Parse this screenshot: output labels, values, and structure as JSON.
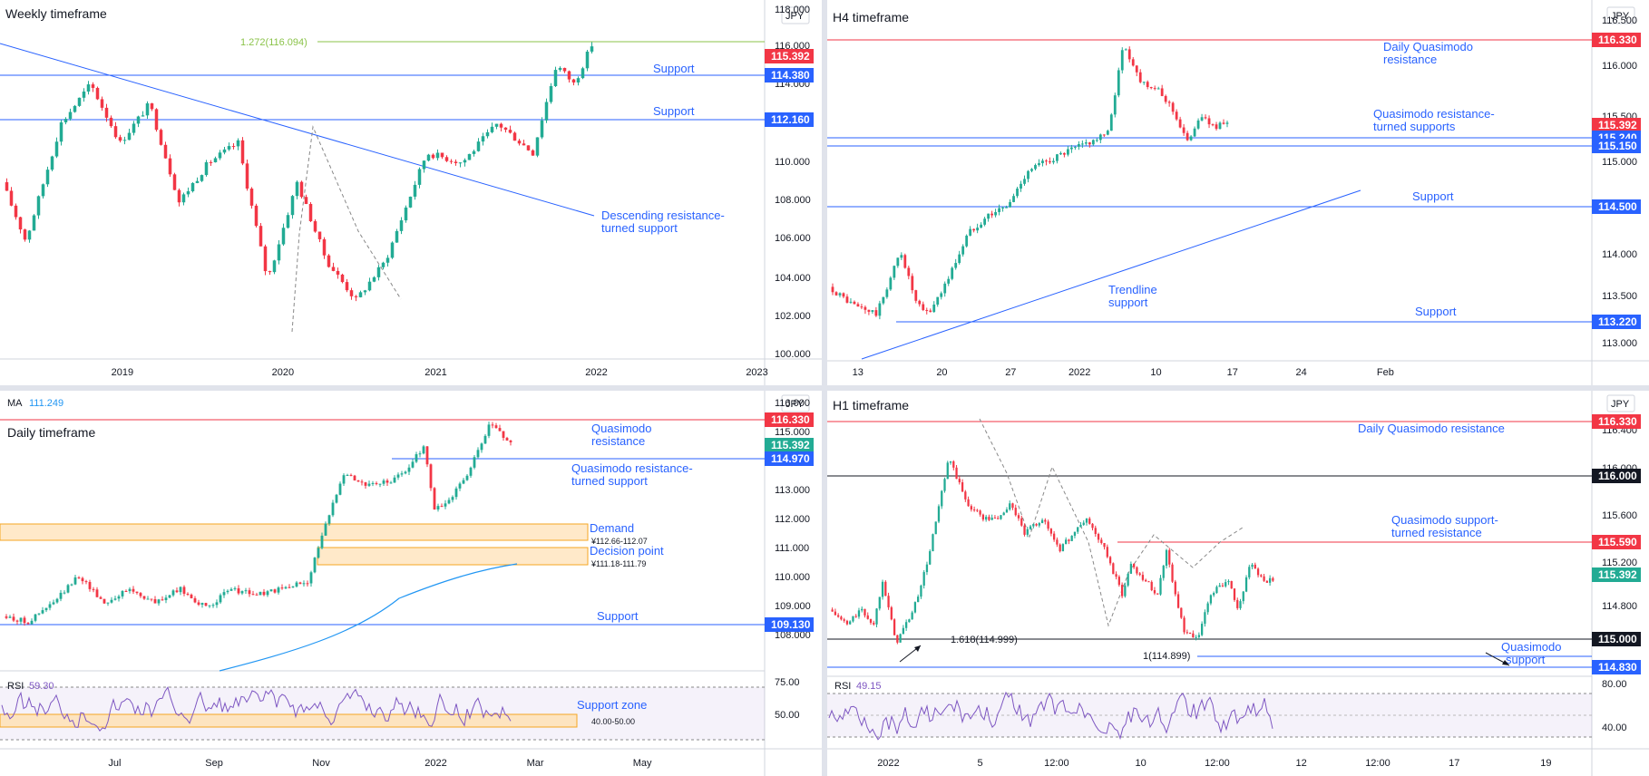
{
  "currency": "JPY",
  "chart_data": [
    {
      "type": "candlestick",
      "title": "Weekly timeframe",
      "ylim": [
        100.0,
        118.0
      ],
      "y_ticks": [
        "118.000",
        "116.000",
        "114.000",
        "112.000",
        "110.000",
        "108.000",
        "106.000",
        "104.000",
        "102.000",
        "100.000"
      ],
      "x_ticks": [
        "2019",
        "2020",
        "2021",
        "2022",
        "2023"
      ],
      "price_tags": [
        {
          "label": "115.392",
          "value": 115.392,
          "color": "#f23645"
        },
        {
          "label": "114.380",
          "value": 114.38,
          "color": "#2962ff"
        },
        {
          "label": "112.160",
          "value": 112.16,
          "color": "#2962ff"
        }
      ],
      "annotations": [
        {
          "text": "1.272(116.094)"
        },
        {
          "text": "Support"
        },
        {
          "text": "Support"
        },
        {
          "text": "Descending resistance-"
        },
        {
          "text": "turned support"
        }
      ],
      "path": [
        [
          0,
          109
        ],
        [
          0.04,
          106
        ],
        [
          0.1,
          112
        ],
        [
          0.15,
          114
        ],
        [
          0.2,
          111
        ],
        [
          0.25,
          113
        ],
        [
          0.3,
          108
        ],
        [
          0.35,
          110
        ],
        [
          0.4,
          111
        ],
        [
          0.45,
          104
        ],
        [
          0.5,
          109
        ],
        [
          0.55,
          105
        ],
        [
          0.6,
          103
        ],
        [
          0.65,
          105
        ],
        [
          0.72,
          110.5
        ],
        [
          0.78,
          110
        ],
        [
          0.84,
          112
        ],
        [
          0.9,
          110.5
        ],
        [
          0.94,
          115
        ],
        [
          0.97,
          114
        ],
        [
          1,
          116
        ]
      ]
    },
    {
      "type": "candlestick",
      "title": "H4 timeframe",
      "ylim": [
        112.8,
        116.6
      ],
      "y_ticks": [
        "116.500",
        "116.000",
        "115.500",
        "115.000",
        "114.500",
        "114.000",
        "113.500",
        "113.000"
      ],
      "x_ticks": [
        "13",
        "20",
        "27",
        "2022",
        "10",
        "17",
        "24",
        "Feb"
      ],
      "price_tags": [
        {
          "label": "116.330",
          "value": 116.33,
          "color": "#f23645"
        },
        {
          "label": "115.392",
          "value": 115.392,
          "color": "#f23645"
        },
        {
          "label": "115.240",
          "value": 115.24,
          "color": "#2962ff"
        },
        {
          "label": "115.150",
          "value": 115.15,
          "color": "#2962ff"
        },
        {
          "label": "114.500",
          "value": 114.5,
          "color": "#2962ff"
        },
        {
          "label": "113.220",
          "value": 113.22,
          "color": "#2962ff"
        }
      ],
      "annotations": [
        {
          "text": "Daily Quasimodo"
        },
        {
          "text": "resistance"
        },
        {
          "text": "Quasimodo resistance-"
        },
        {
          "text": "turned supports"
        },
        {
          "text": "Support"
        },
        {
          "text": "Trendline"
        },
        {
          "text": "support"
        },
        {
          "text": "Support"
        }
      ],
      "path": [
        [
          0,
          113.6
        ],
        [
          0.06,
          113.4
        ],
        [
          0.12,
          113.3
        ],
        [
          0.18,
          114.0
        ],
        [
          0.22,
          113.4
        ],
        [
          0.25,
          113.3
        ],
        [
          0.3,
          113.7
        ],
        [
          0.35,
          114.2
        ],
        [
          0.4,
          114.4
        ],
        [
          0.45,
          114.5
        ],
        [
          0.5,
          114.9
        ],
        [
          0.55,
          115.0
        ],
        [
          0.6,
          115.1
        ],
        [
          0.65,
          115.2
        ],
        [
          0.7,
          115.3
        ],
        [
          0.74,
          116.3
        ],
        [
          0.78,
          115.9
        ],
        [
          0.82,
          115.8
        ],
        [
          0.86,
          115.6
        ],
        [
          0.9,
          115.2
        ],
        [
          0.93,
          115.5
        ],
        [
          0.96,
          115.39
        ]
      ]
    },
    {
      "type": "candlestick",
      "title": "Daily timeframe",
      "ylim": [
        107.0,
        117.0
      ],
      "y_ticks": [
        "116.000",
        "115.000",
        "114.000",
        "113.000",
        "112.000",
        "111.000",
        "110.000",
        "109.000",
        "108.000"
      ],
      "x_ticks": [
        "Jul",
        "Sep",
        "Nov",
        "2022",
        "Mar",
        "May"
      ],
      "ma": {
        "label": "MA",
        "value": "111.249"
      },
      "price_tags": [
        {
          "label": "116.330",
          "value": 116.33,
          "color": "#f23645"
        },
        {
          "label": "115.392",
          "value": 115.392,
          "color": "#22ab94"
        },
        {
          "label": "114.970",
          "value": 114.97,
          "color": "#2962ff"
        },
        {
          "label": "109.130",
          "value": 109.13,
          "color": "#2962ff"
        }
      ],
      "annotations": [
        {
          "text": "Quasimodo"
        },
        {
          "text": "resistance"
        },
        {
          "text": "Quasimodo resistance-"
        },
        {
          "text": "turned support"
        },
        {
          "text": "Demand"
        },
        {
          "text": "¥112.66-112.07"
        },
        {
          "text": "Decision point"
        },
        {
          "text": "¥111.18-111.79"
        },
        {
          "text": "Support"
        }
      ],
      "path": [
        [
          0,
          109
        ],
        [
          0.05,
          108.8
        ],
        [
          0.1,
          109.5
        ],
        [
          0.15,
          110.5
        ],
        [
          0.2,
          109.5
        ],
        [
          0.25,
          110
        ],
        [
          0.3,
          109.5
        ],
        [
          0.35,
          110
        ],
        [
          0.4,
          109.3
        ],
        [
          0.45,
          110
        ],
        [
          0.5,
          109.8
        ],
        [
          0.55,
          110
        ],
        [
          0.6,
          110.3
        ],
        [
          0.63,
          112
        ],
        [
          0.67,
          114.3
        ],
        [
          0.72,
          113.8
        ],
        [
          0.77,
          114
        ],
        [
          0.8,
          114.5
        ],
        [
          0.83,
          115.3
        ],
        [
          0.85,
          112.9
        ],
        [
          0.88,
          113.3
        ],
        [
          0.92,
          114.4
        ],
        [
          0.96,
          116.1
        ],
        [
          1,
          115.4
        ]
      ],
      "rsi": {
        "label": "RSI",
        "value": "59.30",
        "y_ticks": [
          "75.00",
          "50.00"
        ],
        "support_zone": {
          "text": "Support zone",
          "range": "40.00-50.00"
        }
      }
    },
    {
      "type": "candlestick",
      "title": "H1 timeframe",
      "ylim": [
        114.76,
        116.5
      ],
      "y_ticks": [
        "116.400",
        "116.000",
        "115.600",
        "115.200",
        "114.800"
      ],
      "x_ticks": [
        "2022",
        "5",
        "12:00",
        "10",
        "12:00",
        "12",
        "12:00",
        "17",
        "19"
      ],
      "price_tags": [
        {
          "label": "116.330",
          "value": 116.33,
          "color": "#f23645"
        },
        {
          "label": "116.000",
          "value": 116.0,
          "color": "#131722"
        },
        {
          "label": "115.590",
          "value": 115.59,
          "color": "#f23645"
        },
        {
          "label": "115.392",
          "value": 115.392,
          "color": "#22ab94"
        },
        {
          "label": "115.000",
          "value": 115.0,
          "color": "#131722"
        },
        {
          "label": "114.830",
          "value": 114.83,
          "color": "#2962ff"
        }
      ],
      "annotations": [
        {
          "text": "Daily Quasimodo resistance"
        },
        {
          "text": "Quasimodo support-"
        },
        {
          "text": "turned resistance"
        },
        {
          "text": "1.618(114.999)"
        },
        {
          "text": "1(114.899)"
        },
        {
          "text": "Quasimodo"
        },
        {
          "text": "support"
        }
      ],
      "path": [
        [
          0,
          115.2
        ],
        [
          0.04,
          115.1
        ],
        [
          0.07,
          115.2
        ],
        [
          0.1,
          115.1
        ],
        [
          0.12,
          115.4
        ],
        [
          0.15,
          114.98
        ],
        [
          0.19,
          115.2
        ],
        [
          0.22,
          115.5
        ],
        [
          0.27,
          116.2
        ],
        [
          0.31,
          115.9
        ],
        [
          0.35,
          115.8
        ],
        [
          0.38,
          115.8
        ],
        [
          0.41,
          115.9
        ],
        [
          0.44,
          115.7
        ],
        [
          0.48,
          115.8
        ],
        [
          0.52,
          115.6
        ],
        [
          0.55,
          115.7
        ],
        [
          0.58,
          115.8
        ],
        [
          0.62,
          115.6
        ],
        [
          0.66,
          115.3
        ],
        [
          0.68,
          115.5
        ],
        [
          0.71,
          115.4
        ],
        [
          0.74,
          115.3
        ],
        [
          0.76,
          115.6
        ],
        [
          0.78,
          115.3
        ],
        [
          0.8,
          115.05
        ],
        [
          0.83,
          115.0
        ],
        [
          0.86,
          115.3
        ],
        [
          0.9,
          115.4
        ],
        [
          0.92,
          115.2
        ],
        [
          0.95,
          115.5
        ],
        [
          0.98,
          115.39
        ]
      ],
      "rsi": {
        "label": "RSI",
        "value": "49.15",
        "y_ticks": [
          "80.00",
          "40.00"
        ]
      }
    }
  ]
}
